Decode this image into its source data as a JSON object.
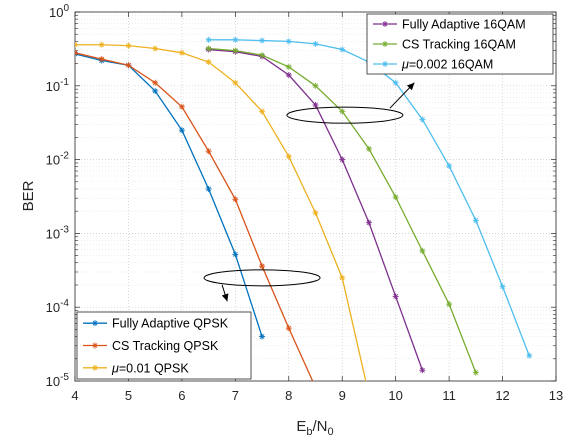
{
  "chart_data": {
    "type": "line",
    "title": "",
    "xlabel": "E_b/N_0",
    "ylabel": "BER",
    "xscale": "linear",
    "yscale": "log",
    "xlim": [
      4,
      13
    ],
    "ylim": [
      1e-05,
      1
    ],
    "grid": true,
    "x_ticks": [
      "4",
      "5",
      "6",
      "7",
      "8",
      "9",
      "10",
      "11",
      "12",
      "13"
    ],
    "y_ticks": [
      {
        "base": "10",
        "exp": "0"
      },
      {
        "base": "10",
        "exp": "-1"
      },
      {
        "base": "10",
        "exp": "-2"
      },
      {
        "base": "10",
        "exp": "-3"
      },
      {
        "base": "10",
        "exp": "-4"
      },
      {
        "base": "10",
        "exp": "-5"
      }
    ],
    "series": [
      {
        "name": "Fully Adaptive QPSK",
        "color": "#0072BD",
        "group": "QPSK",
        "x": [
          4,
          4.5,
          5,
          5.5,
          6,
          6.5,
          7,
          7.5
        ],
        "y": [
          0.27,
          0.22,
          0.19,
          0.085,
          0.025,
          0.004,
          0.00052,
          4e-05
        ]
      },
      {
        "name": "CS Tracking QPSK",
        "color": "#D95319",
        "group": "QPSK",
        "x": [
          4,
          4.5,
          5,
          5.5,
          6,
          6.5,
          7,
          7.5,
          8,
          8.5
        ],
        "y": [
          0.28,
          0.23,
          0.19,
          0.11,
          0.052,
          0.013,
          0.0029,
          0.00036,
          5.2e-05,
          8.2e-06
        ]
      },
      {
        "name": "μ=0.01 QPSK",
        "color": "#EDB120",
        "group": "QPSK",
        "x": [
          4,
          4.5,
          5,
          5.5,
          6,
          6.5,
          7,
          7.5,
          8,
          8.5,
          9,
          9.5
        ],
        "y": [
          0.36,
          0.36,
          0.35,
          0.32,
          0.28,
          0.21,
          0.11,
          0.045,
          0.011,
          0.0019,
          0.00025,
          6.5e-06
        ]
      },
      {
        "name": "Fully Adaptive 16QAM",
        "color": "#7E2F8E",
        "group": "16QAM",
        "x": [
          6.5,
          7,
          7.5,
          8,
          8.5,
          9,
          9.5,
          10,
          10.5
        ],
        "y": [
          0.31,
          0.29,
          0.25,
          0.14,
          0.055,
          0.01,
          0.0014,
          0.00014,
          1.4e-05
        ]
      },
      {
        "name": "CS Tracking 16QAM",
        "color": "#77AC30",
        "group": "16QAM",
        "x": [
          6.5,
          7,
          7.5,
          8,
          8.5,
          9,
          9.5,
          10,
          10.5,
          11,
          11.5
        ],
        "y": [
          0.32,
          0.3,
          0.26,
          0.18,
          0.1,
          0.045,
          0.014,
          0.0031,
          0.00058,
          0.00011,
          1.3e-05
        ]
      },
      {
        "name": "μ=0.002 16QAM",
        "color": "#4DBEEE",
        "group": "16QAM",
        "x": [
          6.5,
          7,
          7.5,
          8,
          8.5,
          9,
          9.5,
          10,
          10.5,
          11,
          11.5,
          12,
          12.5
        ],
        "y": [
          0.42,
          0.42,
          0.41,
          0.4,
          0.37,
          0.31,
          0.21,
          0.11,
          0.035,
          0.0082,
          0.0015,
          0.00019,
          2.2e-05
        ]
      }
    ],
    "legends": [
      {
        "placement": "top-right",
        "items": [
          {
            "prefix": "",
            "italic": "",
            "text": "Fully Adaptive 16QAM",
            "color": "#7E2F8E"
          },
          {
            "prefix": "",
            "italic": "",
            "text": "CS Tracking 16QAM",
            "color": "#77AC30"
          },
          {
            "prefix": "",
            "italic": "μ",
            "text": "=0.002 16QAM",
            "color": "#4DBEEE"
          }
        ]
      },
      {
        "placement": "bottom-left",
        "items": [
          {
            "prefix": "",
            "italic": "",
            "text": "Fully Adaptive QPSK",
            "color": "#0072BD"
          },
          {
            "prefix": "",
            "italic": "",
            "text": "CS Tracking QPSK",
            "color": "#D95319"
          },
          {
            "prefix": "",
            "italic": "μ",
            "text": "=0.01 QPSK",
            "color": "#EDB120"
          }
        ]
      }
    ],
    "annotations": [
      {
        "type": "ellipse-arrow",
        "group": "16QAM",
        "cx": 9.05,
        "cy": 0.04,
        "arrow_to": [
          10.35,
          0.11
        ]
      },
      {
        "type": "ellipse-arrow",
        "group": "QPSK",
        "cx": 7.5,
        "cy": 0.00025,
        "arrow_to": [
          6.85,
          0.00012
        ]
      }
    ]
  }
}
